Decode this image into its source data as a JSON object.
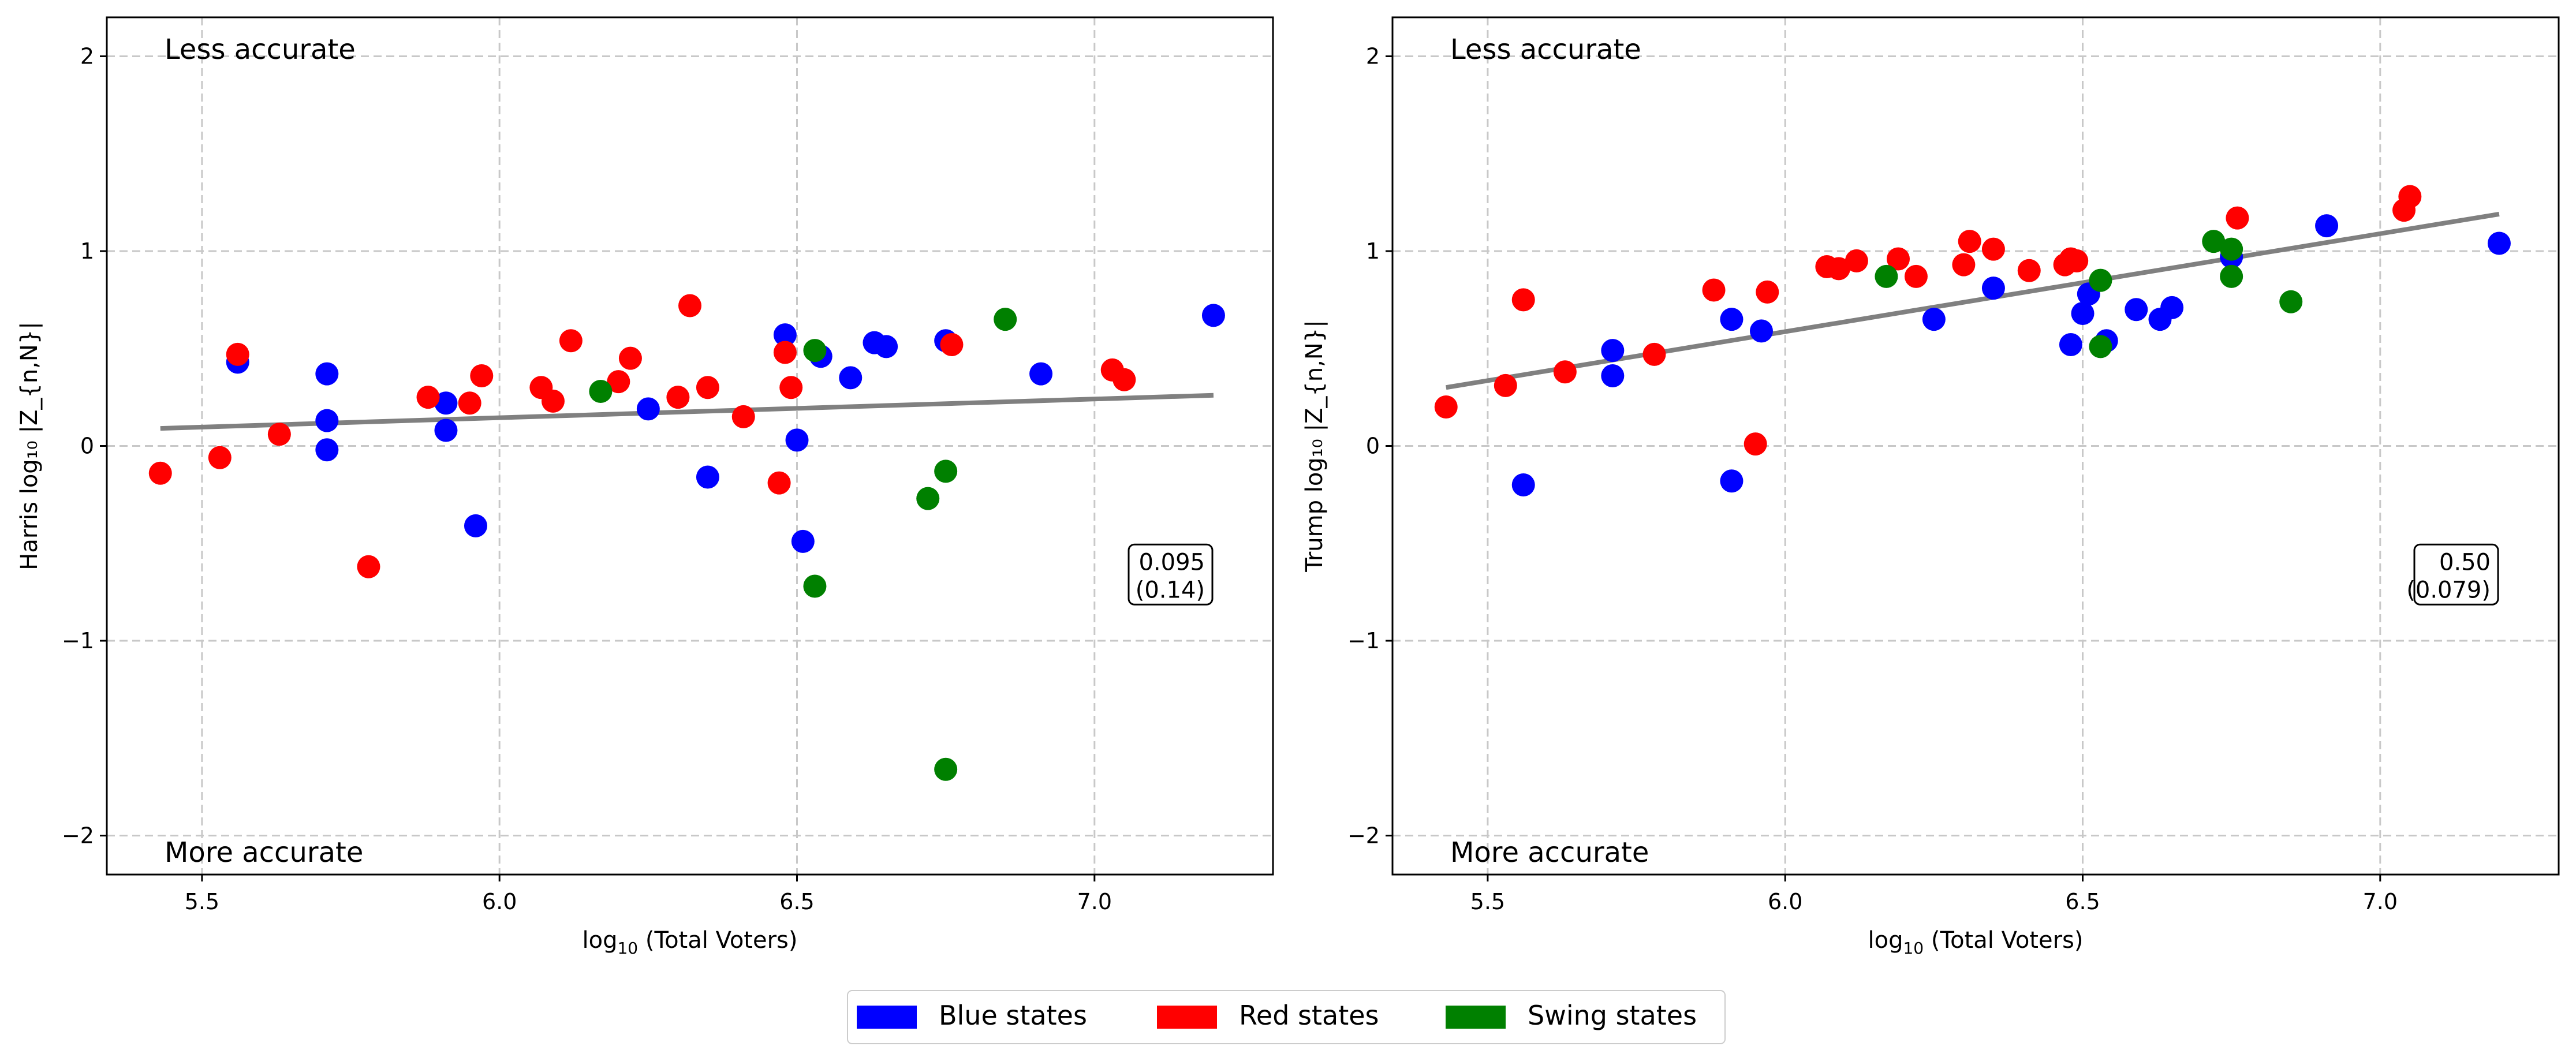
{
  "colors": {
    "blue": "#0000ff",
    "red": "#ff0000",
    "green": "#008000",
    "fit_line": "#808080",
    "grid": "#c8c8c8"
  },
  "legend": {
    "placement": "bottom-center",
    "items": [
      {
        "label": "Blue states",
        "color_key": "blue"
      },
      {
        "label": "Red states",
        "color_key": "red"
      },
      {
        "label": "Swing states",
        "color_key": "green"
      }
    ]
  },
  "chart_data": [
    {
      "type": "scatter",
      "xlabel_main": "log",
      "xlabel_sub": "10",
      "xlabel_rest": " (Total Voters)",
      "ylabel": "Harris log₁₀ |Z_{n,N}|",
      "xlim": [
        5.34,
        7.3
      ],
      "ylim": [
        -2.2,
        2.2
      ],
      "xticks": [
        5.5,
        6.0,
        6.5,
        7.0
      ],
      "xticklabels": [
        "5.5",
        "6.0",
        "6.5",
        "7.0"
      ],
      "yticks": [
        -2,
        -1,
        0,
        1,
        2
      ],
      "yticklabels": [
        "−2",
        "−1",
        "0",
        "1",
        "2"
      ],
      "grid": true,
      "annotations": {
        "top": "Less accurate",
        "bottom": "More accurate"
      },
      "stat_box": [
        "0.095",
        "(0.14)"
      ],
      "fit": {
        "x": [
          5.43,
          7.2
        ],
        "y": [
          0.09,
          0.26
        ]
      },
      "series": [
        {
          "name": "Blue states",
          "color_key": "blue",
          "points": [
            [
              5.56,
              0.43
            ],
            [
              5.71,
              0.37
            ],
            [
              5.71,
              0.13
            ],
            [
              5.71,
              -0.02
            ],
            [
              5.91,
              0.22
            ],
            [
              5.91,
              0.08
            ],
            [
              5.96,
              -0.41
            ],
            [
              6.25,
              0.19
            ],
            [
              6.35,
              -0.16
            ],
            [
              6.48,
              0.57
            ],
            [
              6.5,
              0.03
            ],
            [
              6.51,
              -0.49
            ],
            [
              6.54,
              0.46
            ],
            [
              6.59,
              0.35
            ],
            [
              6.63,
              0.53
            ],
            [
              6.65,
              0.51
            ],
            [
              6.75,
              0.54
            ],
            [
              6.91,
              0.37
            ],
            [
              7.2,
              0.67
            ]
          ]
        },
        {
          "name": "Red states",
          "color_key": "red",
          "points": [
            [
              5.43,
              -0.14
            ],
            [
              5.53,
              -0.06
            ],
            [
              5.56,
              0.47
            ],
            [
              5.63,
              0.06
            ],
            [
              5.78,
              -0.62
            ],
            [
              5.88,
              0.25
            ],
            [
              5.95,
              0.22
            ],
            [
              5.97,
              0.36
            ],
            [
              6.07,
              0.3
            ],
            [
              6.09,
              0.23
            ],
            [
              6.12,
              0.54
            ],
            [
              6.2,
              0.33
            ],
            [
              6.22,
              0.45
            ],
            [
              6.3,
              0.25
            ],
            [
              6.32,
              0.72
            ],
            [
              6.35,
              0.3
            ],
            [
              6.41,
              0.15
            ],
            [
              6.47,
              -0.19
            ],
            [
              6.48,
              0.48
            ],
            [
              6.49,
              0.3
            ],
            [
              6.76,
              0.52
            ],
            [
              7.03,
              0.39
            ],
            [
              7.05,
              0.34
            ]
          ]
        },
        {
          "name": "Swing states",
          "color_key": "green",
          "points": [
            [
              6.17,
              0.28
            ],
            [
              6.53,
              0.49
            ],
            [
              6.53,
              -0.72
            ],
            [
              6.72,
              -0.27
            ],
            [
              6.75,
              -0.13
            ],
            [
              6.75,
              -1.66
            ],
            [
              6.85,
              0.65
            ]
          ]
        }
      ]
    },
    {
      "type": "scatter",
      "xlabel_main": "log",
      "xlabel_sub": "10",
      "xlabel_rest": " (Total Voters)",
      "ylabel": "Trump log₁₀ |Z_{n,N}|",
      "xlim": [
        5.34,
        7.3
      ],
      "ylim": [
        -2.2,
        2.2
      ],
      "xticks": [
        5.5,
        6.0,
        6.5,
        7.0
      ],
      "xticklabels": [
        "5.5",
        "6.0",
        "6.5",
        "7.0"
      ],
      "yticks": [
        -2,
        -1,
        0,
        1,
        2
      ],
      "yticklabels": [
        "−2",
        "−1",
        "0",
        "1",
        "2"
      ],
      "grid": true,
      "annotations": {
        "top": "Less accurate",
        "bottom": "More accurate"
      },
      "stat_box": [
        "0.50",
        "(0.079)"
      ],
      "fit": {
        "x": [
          5.43,
          7.2
        ],
        "y": [
          0.3,
          1.19
        ]
      },
      "series": [
        {
          "name": "Blue states",
          "color_key": "blue",
          "points": [
            [
              5.56,
              -0.2
            ],
            [
              5.71,
              0.49
            ],
            [
              5.71,
              0.36
            ],
            [
              5.91,
              0.65
            ],
            [
              5.91,
              -0.18
            ],
            [
              5.96,
              0.59
            ],
            [
              6.25,
              0.65
            ],
            [
              6.35,
              0.81
            ],
            [
              6.48,
              0.52
            ],
            [
              6.5,
              0.68
            ],
            [
              6.51,
              0.78
            ],
            [
              6.54,
              0.54
            ],
            [
              6.59,
              0.7
            ],
            [
              6.63,
              0.65
            ],
            [
              6.65,
              0.71
            ],
            [
              6.75,
              0.97
            ],
            [
              6.91,
              1.13
            ],
            [
              7.2,
              1.04
            ]
          ]
        },
        {
          "name": "Red states",
          "color_key": "red",
          "points": [
            [
              5.43,
              0.2
            ],
            [
              5.53,
              0.31
            ],
            [
              5.56,
              0.75
            ],
            [
              5.63,
              0.38
            ],
            [
              5.78,
              0.47
            ],
            [
              5.88,
              0.8
            ],
            [
              5.95,
              0.01
            ],
            [
              5.97,
              0.79
            ],
            [
              6.07,
              0.92
            ],
            [
              6.09,
              0.91
            ],
            [
              6.12,
              0.95
            ],
            [
              6.19,
              0.96
            ],
            [
              6.22,
              0.87
            ],
            [
              6.3,
              0.93
            ],
            [
              6.31,
              1.05
            ],
            [
              6.35,
              1.01
            ],
            [
              6.41,
              0.9
            ],
            [
              6.47,
              0.93
            ],
            [
              6.48,
              0.96
            ],
            [
              6.49,
              0.95
            ],
            [
              6.76,
              1.17
            ],
            [
              7.04,
              1.21
            ],
            [
              7.05,
              1.28
            ]
          ]
        },
        {
          "name": "Swing states",
          "color_key": "green",
          "points": [
            [
              6.17,
              0.87
            ],
            [
              6.53,
              0.51
            ],
            [
              6.53,
              0.85
            ],
            [
              6.72,
              1.05
            ],
            [
              6.75,
              1.01
            ],
            [
              6.75,
              0.87
            ],
            [
              6.85,
              0.74
            ]
          ]
        }
      ]
    }
  ]
}
